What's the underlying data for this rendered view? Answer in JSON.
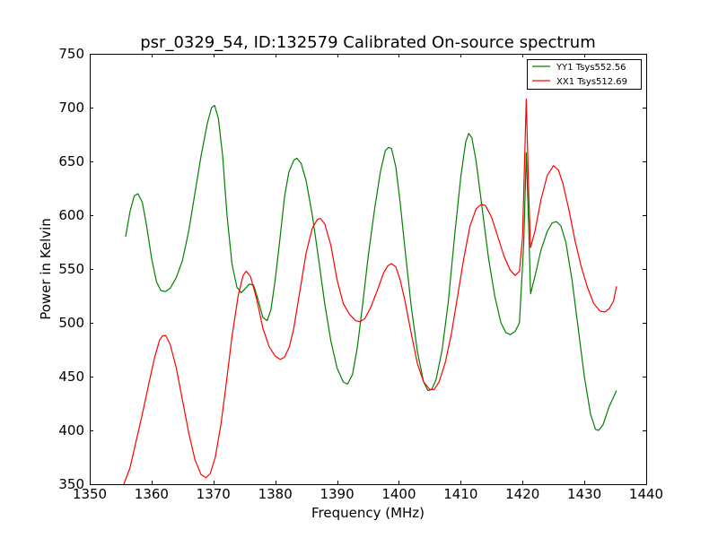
{
  "chart_data": {
    "type": "line",
    "title": "psr_0329_54, ID:132579 Calibrated On-source spectrum",
    "xlabel": "Frequency (MHz)",
    "ylabel": "Power in Kelvin",
    "xlim": [
      1350,
      1440
    ],
    "ylim": [
      350,
      750
    ],
    "xticks": [
      1350,
      1360,
      1370,
      1380,
      1390,
      1400,
      1410,
      1420,
      1430,
      1440
    ],
    "yticks": [
      350,
      400,
      450,
      500,
      550,
      600,
      650,
      700,
      750
    ],
    "grid": false,
    "legend_position": "top-right",
    "series": [
      {
        "name": "YY1 Tsys552.56",
        "color": "#008000",
        "points": [
          [
            1355.8,
            580
          ],
          [
            1356.5,
            603
          ],
          [
            1357.2,
            618
          ],
          [
            1357.8,
            620
          ],
          [
            1358.5,
            612
          ],
          [
            1359.2,
            590
          ],
          [
            1360.0,
            560
          ],
          [
            1360.8,
            538
          ],
          [
            1361.5,
            530
          ],
          [
            1362.2,
            529
          ],
          [
            1363.0,
            532
          ],
          [
            1364.0,
            542
          ],
          [
            1365.0,
            558
          ],
          [
            1366.0,
            585
          ],
          [
            1367.0,
            620
          ],
          [
            1368.0,
            655
          ],
          [
            1369.0,
            685
          ],
          [
            1369.7,
            700
          ],
          [
            1370.2,
            702
          ],
          [
            1370.8,
            690
          ],
          [
            1371.5,
            655
          ],
          [
            1372.2,
            600
          ],
          [
            1373.0,
            555
          ],
          [
            1373.8,
            533
          ],
          [
            1374.5,
            528
          ],
          [
            1375.2,
            532
          ],
          [
            1375.8,
            536
          ],
          [
            1376.5,
            535
          ],
          [
            1377.2,
            522
          ],
          [
            1378.0,
            505
          ],
          [
            1378.7,
            502
          ],
          [
            1379.3,
            512
          ],
          [
            1380.0,
            540
          ],
          [
            1380.8,
            580
          ],
          [
            1381.5,
            617
          ],
          [
            1382.2,
            640
          ],
          [
            1383.0,
            651
          ],
          [
            1383.5,
            653
          ],
          [
            1384.2,
            648
          ],
          [
            1385.0,
            632
          ],
          [
            1386.0,
            600
          ],
          [
            1387.0,
            560
          ],
          [
            1388.0,
            518
          ],
          [
            1389.0,
            483
          ],
          [
            1390.0,
            458
          ],
          [
            1391.0,
            445
          ],
          [
            1391.7,
            443
          ],
          [
            1392.5,
            452
          ],
          [
            1393.3,
            478
          ],
          [
            1394.2,
            520
          ],
          [
            1395.0,
            560
          ],
          [
            1396.0,
            603
          ],
          [
            1397.0,
            640
          ],
          [
            1397.8,
            660
          ],
          [
            1398.3,
            663
          ],
          [
            1398.8,
            662
          ],
          [
            1399.5,
            645
          ],
          [
            1400.2,
            612
          ],
          [
            1401.0,
            568
          ],
          [
            1402.0,
            515
          ],
          [
            1403.0,
            473
          ],
          [
            1404.0,
            445
          ],
          [
            1404.7,
            437
          ],
          [
            1405.3,
            438
          ],
          [
            1406.0,
            447
          ],
          [
            1407.0,
            475
          ],
          [
            1408.0,
            520
          ],
          [
            1409.0,
            580
          ],
          [
            1410.0,
            635
          ],
          [
            1410.8,
            668
          ],
          [
            1411.3,
            676
          ],
          [
            1411.8,
            672
          ],
          [
            1412.5,
            650
          ],
          [
            1413.5,
            605
          ],
          [
            1414.5,
            560
          ],
          [
            1415.5,
            525
          ],
          [
            1416.5,
            500
          ],
          [
            1417.3,
            491
          ],
          [
            1418.0,
            489
          ],
          [
            1418.8,
            492
          ],
          [
            1419.5,
            500
          ],
          [
            1420.2,
            575
          ],
          [
            1420.6,
            658
          ],
          [
            1421.0,
            588
          ],
          [
            1421.3,
            527
          ],
          [
            1422.0,
            543
          ],
          [
            1423.0,
            568
          ],
          [
            1424.0,
            585
          ],
          [
            1424.8,
            593
          ],
          [
            1425.5,
            594
          ],
          [
            1426.2,
            590
          ],
          [
            1427.0,
            575
          ],
          [
            1428.0,
            540
          ],
          [
            1429.0,
            495
          ],
          [
            1430.0,
            450
          ],
          [
            1431.0,
            415
          ],
          [
            1431.8,
            401
          ],
          [
            1432.3,
            400
          ],
          [
            1433.0,
            405
          ],
          [
            1434.0,
            422
          ],
          [
            1435.2,
            437
          ]
        ]
      },
      {
        "name": "XX1 Tsys512.69",
        "color": "#ff0000",
        "points": [
          [
            1355.5,
            350
          ],
          [
            1356.5,
            365
          ],
          [
            1357.5,
            390
          ],
          [
            1358.5,
            415
          ],
          [
            1359.5,
            442
          ],
          [
            1360.5,
            468
          ],
          [
            1361.3,
            484
          ],
          [
            1361.8,
            488
          ],
          [
            1362.3,
            488
          ],
          [
            1363.0,
            480
          ],
          [
            1364.0,
            458
          ],
          [
            1365.0,
            428
          ],
          [
            1366.0,
            398
          ],
          [
            1367.0,
            373
          ],
          [
            1368.0,
            359
          ],
          [
            1368.8,
            356
          ],
          [
            1369.5,
            360
          ],
          [
            1370.3,
            375
          ],
          [
            1371.2,
            405
          ],
          [
            1372.0,
            440
          ],
          [
            1373.0,
            487
          ],
          [
            1374.0,
            525
          ],
          [
            1374.8,
            544
          ],
          [
            1375.3,
            548
          ],
          [
            1376.0,
            543
          ],
          [
            1377.0,
            522
          ],
          [
            1378.0,
            495
          ],
          [
            1379.0,
            478
          ],
          [
            1380.0,
            469
          ],
          [
            1380.8,
            466
          ],
          [
            1381.5,
            468
          ],
          [
            1382.3,
            478
          ],
          [
            1383.0,
            495
          ],
          [
            1384.0,
            530
          ],
          [
            1385.0,
            565
          ],
          [
            1386.0,
            588
          ],
          [
            1386.8,
            596
          ],
          [
            1387.3,
            597
          ],
          [
            1388.0,
            592
          ],
          [
            1389.0,
            572
          ],
          [
            1390.0,
            540
          ],
          [
            1391.0,
            518
          ],
          [
            1392.0,
            508
          ],
          [
            1393.0,
            502
          ],
          [
            1393.7,
            501
          ],
          [
            1394.5,
            504
          ],
          [
            1395.5,
            515
          ],
          [
            1396.5,
            530
          ],
          [
            1397.5,
            546
          ],
          [
            1398.2,
            553
          ],
          [
            1398.8,
            555
          ],
          [
            1399.5,
            552
          ],
          [
            1400.2,
            540
          ],
          [
            1401.0,
            520
          ],
          [
            1402.0,
            490
          ],
          [
            1403.0,
            462
          ],
          [
            1404.0,
            445
          ],
          [
            1405.0,
            438
          ],
          [
            1405.7,
            438
          ],
          [
            1406.5,
            445
          ],
          [
            1407.5,
            463
          ],
          [
            1408.5,
            490
          ],
          [
            1409.5,
            525
          ],
          [
            1410.5,
            560
          ],
          [
            1411.5,
            590
          ],
          [
            1412.5,
            606
          ],
          [
            1413.3,
            610
          ],
          [
            1414.0,
            609
          ],
          [
            1415.0,
            598
          ],
          [
            1416.0,
            580
          ],
          [
            1417.0,
            562
          ],
          [
            1418.0,
            549
          ],
          [
            1418.8,
            544
          ],
          [
            1419.5,
            548
          ],
          [
            1420.0,
            580
          ],
          [
            1420.6,
            708
          ],
          [
            1421.0,
            620
          ],
          [
            1421.3,
            570
          ],
          [
            1422.0,
            585
          ],
          [
            1423.0,
            615
          ],
          [
            1424.0,
            637
          ],
          [
            1425.0,
            646
          ],
          [
            1425.8,
            642
          ],
          [
            1426.5,
            630
          ],
          [
            1427.5,
            605
          ],
          [
            1428.5,
            576
          ],
          [
            1429.5,
            552
          ],
          [
            1430.5,
            533
          ],
          [
            1431.5,
            518
          ],
          [
            1432.5,
            511
          ],
          [
            1433.3,
            510
          ],
          [
            1434.0,
            513
          ],
          [
            1434.7,
            520
          ],
          [
            1435.2,
            534
          ]
        ]
      }
    ]
  }
}
